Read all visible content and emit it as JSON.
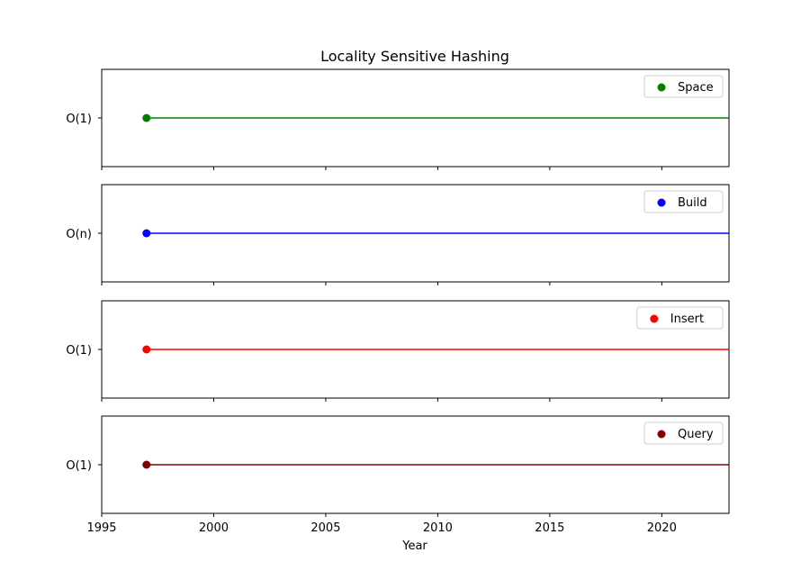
{
  "chart_data": {
    "type": "line",
    "title": "Locality Sensitive Hashing",
    "xlabel": "Year",
    "xlim": [
      1995,
      2023
    ],
    "xticks": [
      1995,
      2000,
      2005,
      2010,
      2015,
      2020
    ],
    "xtick_labels": [
      "1995",
      "2000",
      "2005",
      "2010",
      "2015",
      "2020"
    ],
    "legend_placement": "upper-right",
    "grid": false,
    "panels": [
      {
        "name": "Space",
        "ytick_label": "O(1)",
        "color": "#008000",
        "x": [
          1997,
          2023
        ]
      },
      {
        "name": "Build",
        "ytick_label": "O(n)",
        "color": "#0000ff",
        "x": [
          1997,
          2023
        ]
      },
      {
        "name": "Insert",
        "ytick_label": "O(1)",
        "color": "#ff0000",
        "x": [
          1997,
          2023
        ]
      },
      {
        "name": "Query",
        "ytick_label": "O(1)",
        "color": "#800000",
        "x": [
          1997,
          2023
        ]
      }
    ]
  }
}
